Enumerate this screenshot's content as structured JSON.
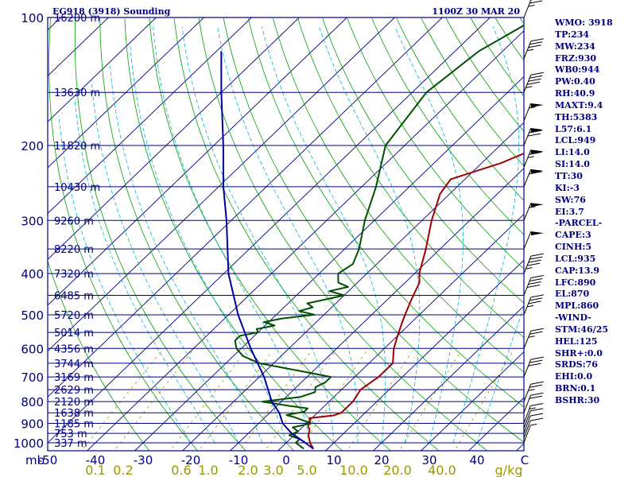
{
  "header": {
    "station": "EG918 (3918) Sounding",
    "time": "1100Z 30 MAR 20"
  },
  "stats": [
    "WMO: 3918",
    "TP:234",
    "MW:234",
    "FRZ:930",
    "WB0:944",
    "PW:0.40",
    "RH:40.9",
    "MAXT:9.4",
    "TH:5383",
    "L57:6.1",
    "LCL:949",
    "LI:14.0",
    "SI:14.0",
    "TT:30",
    "KI:-3",
    "SW:76",
    "EI:3.7",
    "-PARCEL-",
    "CAPE:3",
    "CINH:5",
    "LCL:935",
    "CAP:13.9",
    "LFC:890",
    "EL:870",
    "MPL:860",
    "-WIND-",
    "STM:46/25",
    "HEL:125",
    "SHR+:0.0",
    "SRDS:76",
    "EHI:0.0",
    "BRN:0.1",
    "BSHR:30"
  ],
  "colors": {
    "frame": "#000080",
    "isotherm": "#000080",
    "dry_adiabat": "#00a000",
    "moist_adiabat": "#00b4d0",
    "mixing_ratio": "#999900",
    "temperature": "#a00000",
    "dewpoint": "#005000",
    "parcel": "#0000a0",
    "wind": "#000000"
  },
  "chart_data": {
    "type": "skew-t log-p",
    "title": "EG918 (3918) Sounding",
    "xlabel": "Temperature (C)",
    "ylabel": "Pressure (mb)",
    "x_ticks": [
      "-50",
      "-40",
      "-30",
      "-20",
      "-10",
      "0",
      "10",
      "20",
      "30",
      "40",
      "C"
    ],
    "x_unit_label": "mb",
    "temp_range": [
      -50,
      50
    ],
    "pressure_range": [
      1000,
      100
    ],
    "pressure_ticks": [
      100,
      200,
      300,
      400,
      500,
      600,
      700,
      800,
      900,
      1000
    ],
    "heights": [
      {
        "p": 100,
        "label": "16200 m"
      },
      {
        "p": 150,
        "label": "13630 m"
      },
      {
        "p": 200,
        "label": "11820 m"
      },
      {
        "p": 250,
        "label": "10430 m"
      },
      {
        "p": 300,
        "label": "9260 m"
      },
      {
        "p": 350,
        "label": "8220 m"
      },
      {
        "p": 400,
        "label": "7320 m"
      },
      {
        "p": 450,
        "label": "6485 m"
      },
      {
        "p": 500,
        "label": "5720 m"
      },
      {
        "p": 550,
        "label": "5014 m"
      },
      {
        "p": 600,
        "label": "4356 m"
      },
      {
        "p": 650,
        "label": "3744 m"
      },
      {
        "p": 700,
        "label": "3169 m"
      },
      {
        "p": 750,
        "label": "2629 m"
      },
      {
        "p": 800,
        "label": "2120 m"
      },
      {
        "p": 850,
        "label": "1638 m"
      },
      {
        "p": 900,
        "label": "1185 m"
      },
      {
        "p": 950,
        "label": "753 m"
      },
      {
        "p": 1000,
        "label": "337 m"
      }
    ],
    "mixing_ratio_ticks": [
      "0.1",
      "0.2",
      "0.6",
      "1.0",
      "2.0",
      "3.0",
      "5.0",
      "10.0",
      "20.0",
      "40.0",
      "g/kg"
    ],
    "series": [
      {
        "name": "Temperature",
        "points": [
          [
            1033,
            7
          ],
          [
            1000,
            5
          ],
          [
            960,
            3
          ],
          [
            930,
            2
          ],
          [
            915,
            1
          ],
          [
            895,
            0.5
          ],
          [
            875,
            -0.5
          ],
          [
            862,
            4
          ],
          [
            850,
            5
          ],
          [
            800,
            5
          ],
          [
            750,
            4
          ],
          [
            700,
            5
          ],
          [
            650,
            5
          ],
          [
            600,
            2
          ],
          [
            560,
            0
          ],
          [
            520,
            -2
          ],
          [
            500,
            -3
          ],
          [
            460,
            -5
          ],
          [
            420,
            -7
          ],
          [
            400,
            -9
          ],
          [
            350,
            -13
          ],
          [
            300,
            -18
          ],
          [
            260,
            -22
          ],
          [
            240,
            -23
          ],
          [
            220,
            -16
          ],
          [
            200,
            -11
          ],
          [
            180,
            -6
          ],
          [
            150,
            5
          ],
          [
            120,
            13
          ],
          [
            100,
            19
          ]
        ]
      },
      {
        "name": "Dewpoint",
        "points": [
          [
            1033,
            5
          ],
          [
            1000,
            2
          ],
          [
            980,
            2
          ],
          [
            960,
            -1
          ],
          [
            940,
            0
          ],
          [
            920,
            -2
          ],
          [
            900,
            1
          ],
          [
            870,
            -4
          ],
          [
            860,
            -6
          ],
          [
            845,
            -3
          ],
          [
            830,
            -3
          ],
          [
            820,
            -7
          ],
          [
            800,
            -14
          ],
          [
            780,
            -7
          ],
          [
            760,
            -5
          ],
          [
            740,
            -6
          ],
          [
            720,
            -5
          ],
          [
            700,
            -5
          ],
          [
            680,
            -12
          ],
          [
            650,
            -23
          ],
          [
            625,
            -28
          ],
          [
            600,
            -31
          ],
          [
            575,
            -33
          ],
          [
            560,
            -33
          ],
          [
            550,
            -30
          ],
          [
            540,
            -31
          ],
          [
            530,
            -28
          ],
          [
            520,
            -31
          ],
          [
            510,
            -28
          ],
          [
            500,
            -22
          ],
          [
            490,
            -26
          ],
          [
            480,
            -24
          ],
          [
            470,
            -26
          ],
          [
            460,
            -23
          ],
          [
            450,
            -20
          ],
          [
            440,
            -24
          ],
          [
            430,
            -21
          ],
          [
            420,
            -24
          ],
          [
            410,
            -25
          ],
          [
            400,
            -26
          ],
          [
            380,
            -25
          ],
          [
            350,
            -27
          ],
          [
            300,
            -32
          ],
          [
            250,
            -37
          ],
          [
            200,
            -44
          ],
          [
            150,
            -47
          ],
          [
            120,
            -45
          ],
          [
            100,
            -40
          ]
        ]
      },
      {
        "name": "Parcel",
        "points": [
          [
            1033,
            7
          ],
          [
            1000,
            4
          ],
          [
            949,
            -1
          ],
          [
            900,
            -5
          ],
          [
            850,
            -8
          ],
          [
            800,
            -12
          ],
          [
            700,
            -19
          ],
          [
            600,
            -28
          ],
          [
            500,
            -38
          ],
          [
            400,
            -49
          ],
          [
            300,
            -61
          ],
          [
            250,
            -69
          ],
          [
            200,
            -78
          ],
          [
            150,
            -90
          ],
          [
            120,
            -99
          ]
        ]
      }
    ],
    "winds": [
      {
        "p": 1000,
        "dir": 160,
        "kt": 5
      },
      {
        "p": 975,
        "dir": 170,
        "kt": 10
      },
      {
        "p": 950,
        "dir": 180,
        "kt": 10
      },
      {
        "p": 925,
        "dir": 190,
        "kt": 10
      },
      {
        "p": 900,
        "dir": 200,
        "kt": 15
      },
      {
        "p": 850,
        "dir": 220,
        "kt": 20
      },
      {
        "p": 800,
        "dir": 240,
        "kt": 25
      },
      {
        "p": 700,
        "dir": 250,
        "kt": 30
      },
      {
        "p": 600,
        "dir": 250,
        "kt": 25
      },
      {
        "p": 500,
        "dir": 250,
        "kt": 35
      },
      {
        "p": 450,
        "dir": 250,
        "kt": 40
      },
      {
        "p": 400,
        "dir": 260,
        "kt": 45
      },
      {
        "p": 350,
        "dir": 270,
        "kt": 50
      },
      {
        "p": 300,
        "dir": 260,
        "kt": 55
      },
      {
        "p": 250,
        "dir": 250,
        "kt": 60
      },
      {
        "p": 225,
        "dir": 250,
        "kt": 65
      },
      {
        "p": 200,
        "dir": 250,
        "kt": 70
      },
      {
        "p": 175,
        "dir": 250,
        "kt": 55
      },
      {
        "p": 150,
        "dir": 250,
        "kt": 45
      },
      {
        "p": 125,
        "dir": 250,
        "kt": 35
      },
      {
        "p": 100,
        "dir": 250,
        "kt": 25
      }
    ]
  }
}
